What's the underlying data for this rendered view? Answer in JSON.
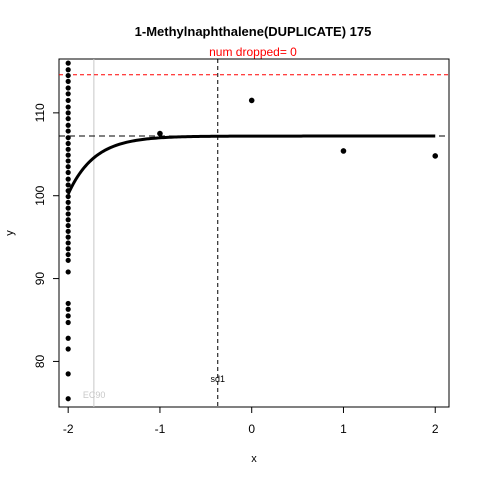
{
  "chart_data": {
    "type": "scatter",
    "title": "1-Methylnaphthalene(DUPLICATE) 175",
    "subtitle": "num dropped= 0",
    "xlabel": "x",
    "ylabel": "y",
    "xlim": [
      -2.1,
      2.15
    ],
    "ylim": [
      74.5,
      116.5
    ],
    "x_ticks": [
      -2,
      -1,
      0,
      1,
      2
    ],
    "y_ticks": [
      80,
      90,
      100,
      110
    ],
    "grid": false,
    "colors": {
      "points": "#000000",
      "curve": "#000000",
      "subtitle": "#ff0000",
      "red_line": "#ff0000",
      "ec90_line": "#c8c8c8",
      "ec90_label": "#c8c8c8"
    },
    "reference_lines": {
      "upper_red_dashed_y": 114.6,
      "horizontal_black_dashed_y": 107.2,
      "vertical_black_dashed_x": -0.37,
      "vertical_black_dashed_label": "sd1",
      "vertical_grey_x": -1.72,
      "vertical_grey_label": "EC90"
    },
    "curve": {
      "description": "fitted curve",
      "lower": 100.2,
      "upper": 107.2,
      "x_start": -2.0,
      "x_end": 2.0,
      "rate": 3.5
    },
    "points_x_minus2_y": [
      116.0,
      115.2,
      114.5,
      113.8,
      113.0,
      112.3,
      111.5,
      110.7,
      110.0,
      109.3,
      108.5,
      107.8,
      107.0,
      106.3,
      105.6,
      104.9,
      104.2,
      103.5,
      102.8,
      102.0,
      101.3,
      100.6,
      99.9,
      99.2,
      98.5,
      97.8,
      97.1,
      96.4,
      95.7,
      95.0,
      94.3,
      93.6,
      92.9,
      92.2,
      90.8,
      87.0,
      86.3,
      85.5,
      84.7,
      82.8,
      81.5,
      78.5,
      75.5
    ],
    "points_other": [
      {
        "x": -1.0,
        "y": 107.5
      },
      {
        "x": 0.0,
        "y": 111.5
      },
      {
        "x": 1.0,
        "y": 105.4
      },
      {
        "x": 2.0,
        "y": 104.8
      }
    ]
  }
}
